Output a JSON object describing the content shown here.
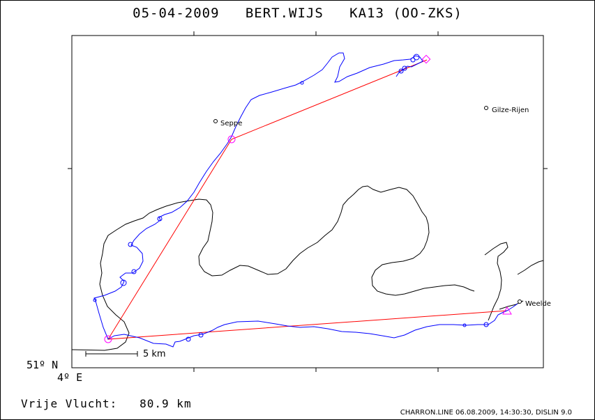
{
  "header": {
    "date": "05-04-2009",
    "pilot": "BERT.WIJS",
    "glider": "KA13 (OO-ZKS)"
  },
  "places": [
    {
      "name": "Seppe"
    },
    {
      "name": "Gilze-Rijen"
    },
    {
      "name": "Weelde"
    }
  ],
  "axes": {
    "lat_label": "51º N",
    "lon_label": "4º E"
  },
  "scale": {
    "label": "5 km"
  },
  "summary": {
    "label": "Vrije Vlucht:",
    "value": "80.9 km"
  },
  "footer": "CHARRON.LINE 06.08.2009, 14:30:30, DISLIN 9.0",
  "colors": {
    "track": "#0000ff",
    "task_line": "#ff0000",
    "turnpoint": "#ff00ff",
    "border": "#000000"
  }
}
